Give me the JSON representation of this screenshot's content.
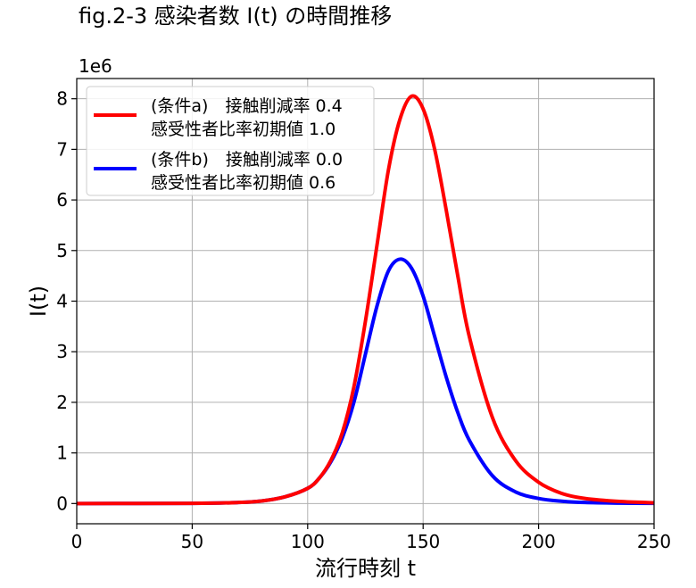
{
  "chart_data": {
    "type": "line",
    "title": "fig.2-3 感染者数 I(t) の時間推移",
    "xlabel": "流行時刻 t",
    "ylabel": "I(t)",
    "y_offset_label": "1e6",
    "xlim": [
      0,
      250
    ],
    "ylim": [
      -0.4,
      8.4
    ],
    "xticks": [
      0,
      50,
      100,
      150,
      200,
      250
    ],
    "yticks": [
      0,
      1,
      2,
      3,
      4,
      5,
      6,
      7,
      8
    ],
    "grid": true,
    "legend_position": "upper-left",
    "series": [
      {
        "name": "(条件a)　接触削減率 0.4\n感受性者比率初期値 1.0",
        "color": "#ff0000",
        "peak_x": 145,
        "peak_y": 8.05
      },
      {
        "name": "(条件b)　接触削減率 0.0\n感受性者比率初期値 0.6",
        "color": "#0000ff",
        "peak_x": 140,
        "peak_y": 4.83
      }
    ],
    "x": [
      0,
      50,
      70,
      80,
      90,
      100,
      105,
      110,
      115,
      120,
      125,
      130,
      135,
      140,
      145,
      150,
      155,
      160,
      165,
      170,
      180,
      190,
      200,
      210,
      220,
      235,
      250
    ],
    "series_values": {
      "a": [
        0,
        0.003,
        0.02,
        0.05,
        0.13,
        0.3,
        0.5,
        0.85,
        1.4,
        2.3,
        3.6,
        5.1,
        6.6,
        7.6,
        8.05,
        7.8,
        7.0,
        5.8,
        4.5,
        3.3,
        1.7,
        0.85,
        0.42,
        0.2,
        0.1,
        0.04,
        0.015
      ],
      "b": [
        0,
        0.003,
        0.02,
        0.05,
        0.13,
        0.3,
        0.5,
        0.82,
        1.3,
        2.0,
        2.95,
        3.9,
        4.6,
        4.83,
        4.65,
        4.1,
        3.3,
        2.5,
        1.8,
        1.25,
        0.55,
        0.23,
        0.1,
        0.045,
        0.02,
        0.008,
        0.003
      ]
    }
  }
}
